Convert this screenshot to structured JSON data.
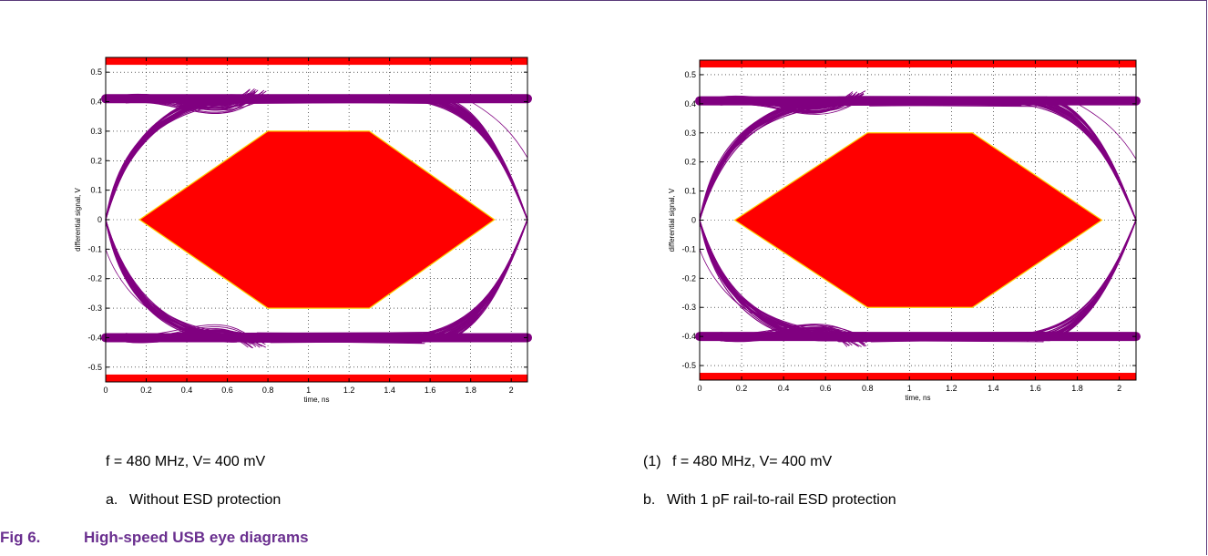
{
  "chart_data": [
    {
      "type": "line",
      "xlabel": "time, ns",
      "ylabel": "differential signal, V",
      "xlim": [
        0,
        2.08
      ],
      "ylim": [
        -0.55,
        0.55
      ],
      "xticks": [
        "0",
        "0.2",
        "0.4",
        "0.6",
        "0.8",
        "1",
        "1.2",
        "1.4",
        "1.6",
        "1.8",
        "2"
      ],
      "yticks": [
        "0.5",
        "0.4",
        "0.3",
        "0.2",
        "0.1",
        "0",
        "-0.1",
        "-0.2",
        "-0.3",
        "-0.4",
        "-0.5"
      ],
      "grid": true,
      "mask": {
        "x": [
          0.167,
          0.8,
          1.3,
          1.917,
          1.3,
          0.8,
          0.167
        ],
        "y": [
          0,
          0.3,
          0.3,
          0,
          -0.3,
          -0.3,
          0
        ]
      },
      "limit_high_v": 0.525,
      "limit_low_v": -0.525,
      "eye_high_v": 0.41,
      "eye_low_v": -0.4,
      "crossing_ns": [
        0,
        2.08
      ],
      "colors": {
        "eye": "#800080",
        "mask": "#ff0000",
        "mask_edge": "#ffcc00",
        "limit": "#ff0000"
      }
    },
    {
      "type": "line",
      "xlabel": "time, ns",
      "ylabel": "differential signal, V",
      "xlim": [
        0,
        2.08
      ],
      "ylim": [
        -0.55,
        0.55
      ],
      "xticks": [
        "0",
        "0.2",
        "0.4",
        "0.6",
        "0.8",
        "1",
        "1.2",
        "1.4",
        "1.6",
        "1.8",
        "2"
      ],
      "yticks": [
        "0.5",
        "0.4",
        "0.3",
        "0.2",
        "0.1",
        "0",
        "-0.1",
        "-0.2",
        "-0.3",
        "-0.4",
        "-0.5"
      ],
      "grid": true,
      "mask": {
        "x": [
          0.167,
          0.8,
          1.3,
          1.917,
          1.3,
          0.8,
          0.167
        ],
        "y": [
          0,
          0.3,
          0.3,
          0,
          -0.3,
          -0.3,
          0
        ]
      },
      "limit_high_v": 0.525,
      "limit_low_v": -0.525,
      "eye_high_v": 0.41,
      "eye_low_v": -0.4,
      "crossing_ns": [
        0,
        2.08
      ],
      "colors": {
        "eye": "#800080",
        "mask": "#ff0000",
        "mask_edge": "#ffcc00",
        "limit": "#ff0000"
      }
    }
  ],
  "notes": {
    "left": "f = 480 MHz, V= 400 mV",
    "right_prefix": "(1)",
    "right": "f = 480 MHz, V= 400 mV"
  },
  "subcaptions": {
    "a_letter": "a.",
    "a_text": "Without ESD protection",
    "b_letter": "b.",
    "b_text": "With 1 pF rail-to-rail ESD protection"
  },
  "figure": {
    "number": "Fig 6.",
    "title": "High-speed USB eye diagrams"
  }
}
